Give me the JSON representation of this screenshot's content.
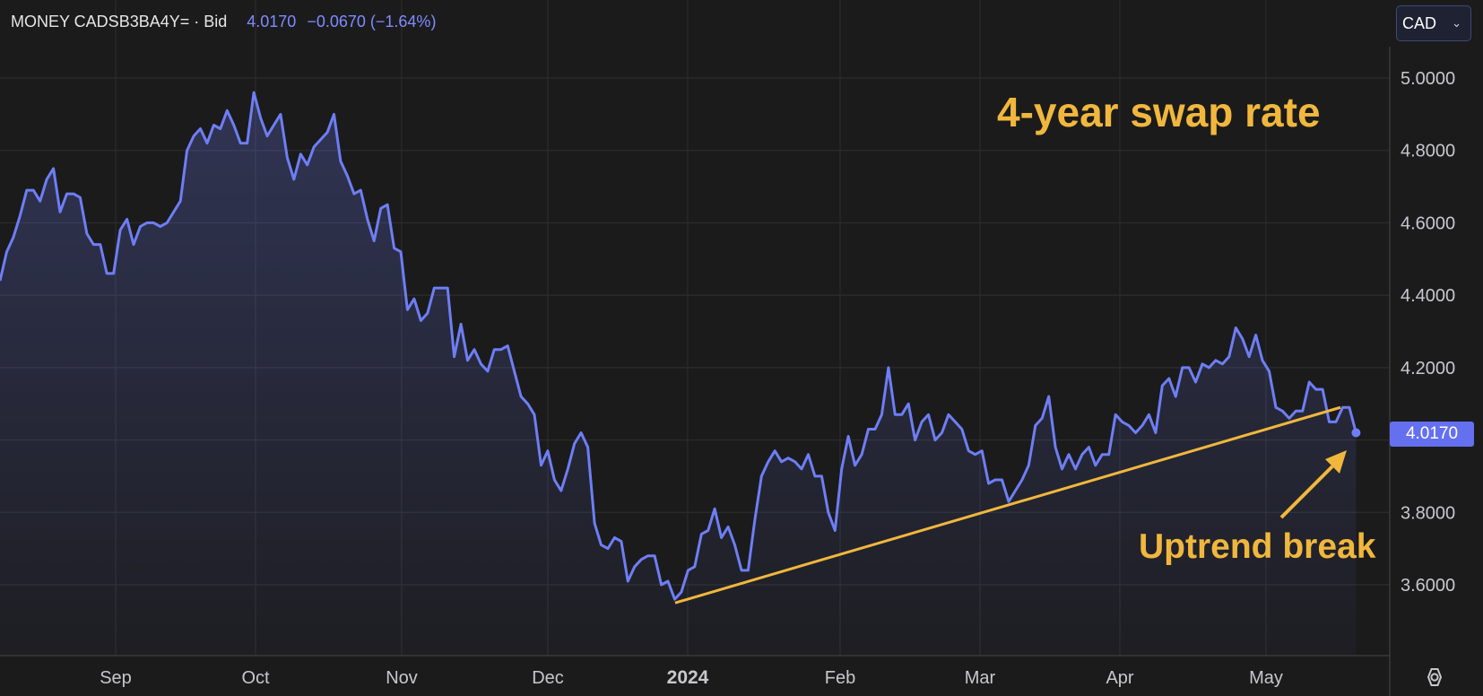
{
  "header": {
    "symbol": "MONEY CADSB3BA4Y= · Bid",
    "price": "4.0170",
    "change": "−0.0670 (−1.64%)"
  },
  "currency": {
    "value": "CAD"
  },
  "annotations": {
    "title": "4-year swap rate",
    "label": "Uptrend break"
  },
  "colors": {
    "background": "#1b1b1c",
    "line": "#6e7ef5",
    "trend": "#f1b73d",
    "badge": "#6470f0",
    "grid": "#2c2c2e"
  },
  "chart_data": {
    "type": "area",
    "title": "4-year swap rate",
    "xlabel": "",
    "ylabel": "",
    "ylim": [
      3.42,
      5.1
    ],
    "x_ticks": [
      "Sep",
      "Oct",
      "Nov",
      "Dec",
      "2024",
      "Feb",
      "Mar",
      "Apr",
      "May"
    ],
    "y_ticks": [
      "3.6000",
      "3.8000",
      "4.2000",
      "4.4000",
      "4.6000",
      "4.8000",
      "5.0000"
    ],
    "last_value": "4.0170",
    "grid": true,
    "series": [
      {
        "values": [
          4.44,
          4.52,
          4.56,
          4.62,
          4.69,
          4.69,
          4.66,
          4.72,
          4.75,
          4.63,
          4.68,
          4.68,
          4.67,
          4.57,
          4.54,
          4.54,
          4.46,
          4.46,
          4.58,
          4.61,
          4.54,
          4.59,
          4.6,
          4.6,
          4.59,
          4.6,
          4.63,
          4.66,
          4.8,
          4.84,
          4.86,
          4.82,
          4.87,
          4.86,
          4.91,
          4.87,
          4.82,
          4.82,
          4.96,
          4.89,
          4.84,
          4.87,
          4.9,
          4.78,
          4.72,
          4.79,
          4.76,
          4.81,
          4.83,
          4.85,
          4.9,
          4.77,
          4.73,
          4.68,
          4.69,
          4.61,
          4.55,
          4.64,
          4.65,
          4.53,
          4.52,
          4.36,
          4.39,
          4.33,
          4.35,
          4.42,
          4.42,
          4.42,
          4.23,
          4.32,
          4.22,
          4.25,
          4.21,
          4.19,
          4.25,
          4.25,
          4.26,
          4.19,
          4.12,
          4.1,
          4.07,
          3.93,
          3.97,
          3.89,
          3.86,
          3.92,
          3.99,
          4.02,
          3.98,
          3.77,
          3.71,
          3.7,
          3.73,
          3.72,
          3.61,
          3.65,
          3.67,
          3.68,
          3.68,
          3.6,
          3.61,
          3.56,
          3.58,
          3.64,
          3.65,
          3.74,
          3.75,
          3.81,
          3.73,
          3.76,
          3.71,
          3.64,
          3.64,
          3.78,
          3.9,
          3.94,
          3.97,
          3.94,
          3.95,
          3.94,
          3.92,
          3.96,
          3.9,
          3.9,
          3.8,
          3.75,
          3.92,
          4.01,
          3.93,
          3.96,
          4.03,
          4.03,
          4.07,
          4.2,
          4.07,
          4.07,
          4.1,
          4.0,
          4.05,
          4.07,
          4.0,
          4.02,
          4.07,
          4.05,
          4.03,
          3.97,
          3.96,
          3.97,
          3.88,
          3.89,
          3.89,
          3.83,
          3.86,
          3.89,
          3.93,
          4.04,
          4.06,
          4.12,
          3.98,
          3.92,
          3.96,
          3.92,
          3.96,
          3.98,
          3.93,
          3.96,
          3.96,
          4.07,
          4.05,
          4.04,
          4.02,
          4.04,
          4.07,
          4.02,
          4.15,
          4.17,
          4.12,
          4.2,
          4.2,
          4.16,
          4.21,
          4.2,
          4.22,
          4.21,
          4.23,
          4.31,
          4.28,
          4.23,
          4.29,
          4.22,
          4.19,
          4.09,
          4.08,
          4.06,
          4.08,
          4.08,
          4.16,
          4.14,
          4.14,
          4.05,
          4.05,
          4.09,
          4.09,
          4.02
        ]
      }
    ],
    "trendline": {
      "start": [
        "2023-12-31",
        3.55
      ],
      "end": [
        "2024-05-17",
        4.09
      ]
    }
  }
}
